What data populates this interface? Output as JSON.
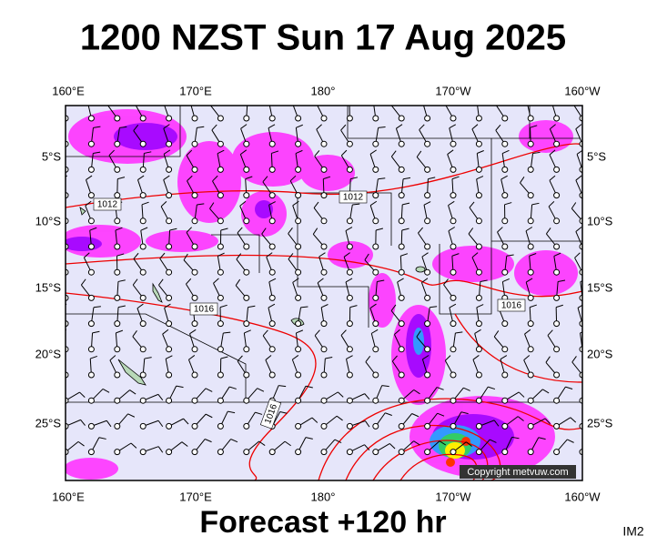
{
  "header": {
    "title": "1200 NZST Sun 17 Aug 2025"
  },
  "map": {
    "longitude_labels": [
      "160°E",
      "170°E",
      "180°",
      "170°W",
      "160°W"
    ],
    "latitude_labels": [
      "5°S",
      "10°S",
      "15°S",
      "20°S",
      "25°S"
    ],
    "isobar_labels": [
      "1012",
      "1012",
      "1016",
      "1016",
      "1016"
    ],
    "copyright": "Copyright metvuw.com"
  },
  "footer": {
    "forecast": "Forecast +120 hr",
    "image_id": "IM2"
  }
}
